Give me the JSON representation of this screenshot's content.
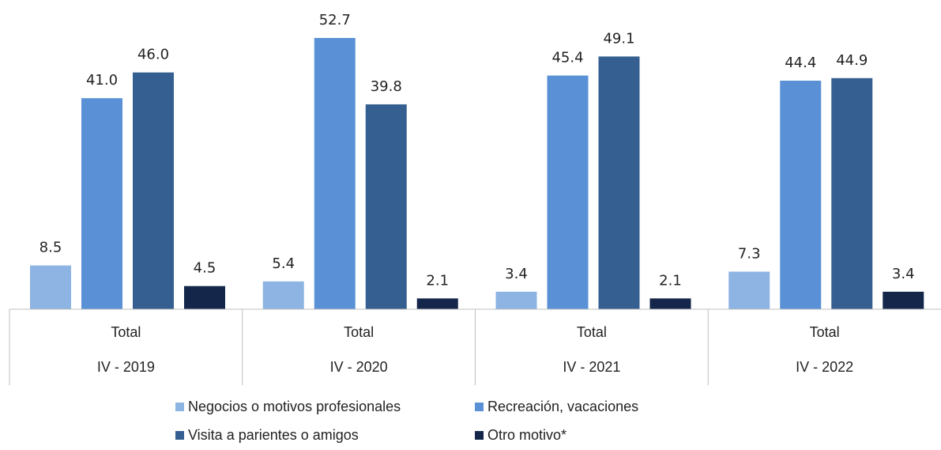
{
  "chart_data": {
    "type": "bar",
    "categories": [
      "IV - 2019",
      "IV - 2020",
      "IV - 2021",
      "IV - 2022"
    ],
    "subcategories": [
      "Total",
      "Total",
      "Total",
      "Total"
    ],
    "series": [
      {
        "name": "Negocios o motivos profesionales",
        "color": "#8db4e2",
        "values": [
          8.5,
          5.4,
          3.4,
          7.3
        ],
        "value_labels": [
          "8.5",
          "5.4",
          "3.4",
          "7.3"
        ]
      },
      {
        "name": "Recreación, vacaciones",
        "color": "#5a91d6",
        "values": [
          41.0,
          52.7,
          45.4,
          44.4
        ],
        "value_labels": [
          "41.0",
          "52.7",
          "45.4",
          "44.4"
        ]
      },
      {
        "name": "Visita a parientes o amigos",
        "color": "#355f91",
        "values": [
          46.0,
          39.8,
          49.1,
          44.9
        ],
        "value_labels": [
          "46.0",
          "39.8",
          "49.1",
          "44.9"
        ]
      },
      {
        "name": "Otro motivo*",
        "color": "#14274a",
        "values": [
          4.5,
          2.1,
          2.1,
          3.4
        ],
        "value_labels": [
          "4.5",
          "2.1",
          "2.1",
          "3.4"
        ]
      }
    ]
  }
}
